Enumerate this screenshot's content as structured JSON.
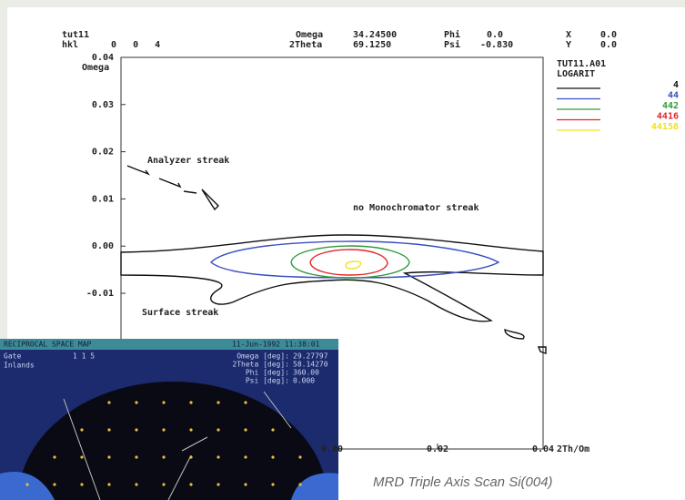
{
  "header": {
    "sample": "tut11",
    "hkl_label": "hkl",
    "hkl": "0   0   4",
    "omega_label": "Omega",
    "omega": "34.24500",
    "twotheta_label": "2Theta",
    "twotheta": "69.1250",
    "phi_label": "Phi",
    "phi": "0.0",
    "psi_label": "Psi",
    "psi": "-0.830",
    "x_label": "X",
    "x": "0.0",
    "y_label": "Y",
    "y": "0.0"
  },
  "chart_data": {
    "type": "contour",
    "x_label": "2Th/Om",
    "y_label": "Omega",
    "file": "TUT11.A01",
    "scale": "LOGARIT",
    "xlim": [
      -0.04,
      0.04
    ],
    "ylim": [
      -0.043,
      0.04
    ],
    "xticks": [
      {
        "value": 0,
        "label": "0.00"
      },
      0.02,
      0.04
    ],
    "yticks": [
      0.04,
      0.03,
      0.02,
      0.01,
      {
        "value": 0,
        "label": "0.00"
      },
      -0.01
    ],
    "levels": [
      4,
      44,
      442,
      4416,
      44158
    ],
    "colors": [
      "#111111",
      "#3a4fc0",
      "#2e9a3a",
      "#e02828",
      "#f2e020"
    ],
    "annotations": [
      "Analyzer streak",
      "no Monochromator streak",
      "Surface streak"
    ]
  },
  "caption": "MRD Triple Axis Scan Si(004)",
  "inset": {
    "title": "RECIPROCAL SPACE MAP",
    "date": "11-Jun-1992 11:38:01",
    "gate_label": "Gate",
    "gate": "1  1  5",
    "sub_label": "Inlands",
    "params": [
      [
        "Omega [deg]:",
        "29.27797"
      ],
      [
        "2Theta [deg]:",
        "58.14270"
      ],
      [
        "Phi [deg]:",
        "360.00"
      ],
      [
        "Psi [deg]:",
        "0.000"
      ]
    ]
  }
}
